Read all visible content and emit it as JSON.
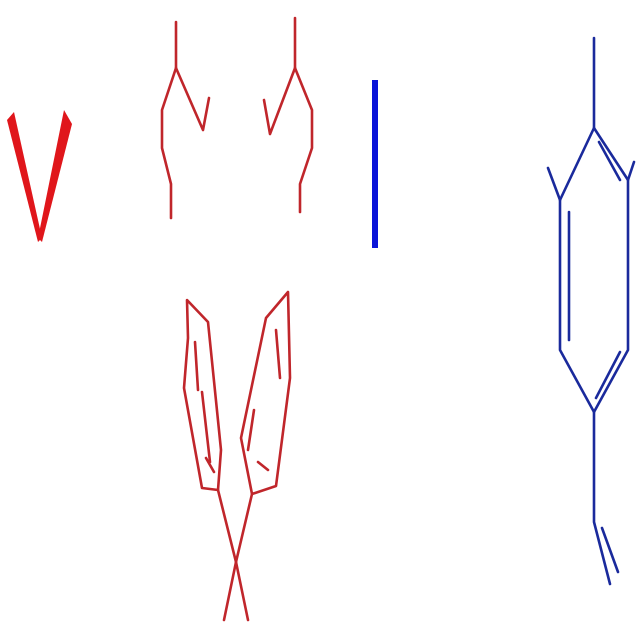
{
  "diagram": {
    "type": "skeletal-chemical-structures",
    "colors": {
      "background": "#ffffff",
      "red": "#c0262b",
      "red_bold": "#e0161b",
      "blue": "#1a2a9c",
      "blue_bold": "#0a14d8"
    },
    "fragments": [
      {
        "name": "v-fragment",
        "color": "red_bold"
      },
      {
        "name": "bisphenol-fragment",
        "color": "red"
      },
      {
        "name": "single-bond-fragment",
        "color": "blue_bold"
      },
      {
        "name": "styrene-fragment",
        "color": "blue"
      }
    ]
  }
}
